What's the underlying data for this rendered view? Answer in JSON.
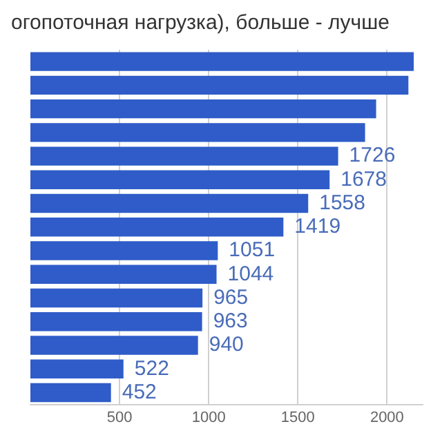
{
  "chart_data": {
    "type": "bar",
    "orientation": "horizontal",
    "title": "огопоточная нагрузка), больше - лучше",
    "categories": [
      null,
      null,
      null,
      null,
      null,
      null,
      null,
      null,
      null,
      null,
      null,
      null,
      null,
      null,
      null
    ],
    "values": [
      2150,
      2120,
      1939,
      1877,
      1726,
      1678,
      1558,
      1419,
      1051,
      1044,
      965,
      963,
      940,
      522,
      452
    ],
    "value_labels": [
      null,
      null,
      null,
      null,
      "1726",
      "1678",
      "1558",
      "1419",
      "1051",
      "1044",
      "965",
      "963",
      "940",
      "522",
      "452"
    ],
    "color": "#2f5cc8",
    "xlim": [
      0,
      2200
    ],
    "xticks": [
      500,
      1000,
      1500,
      2000
    ],
    "grid": "x",
    "legend": false
  }
}
